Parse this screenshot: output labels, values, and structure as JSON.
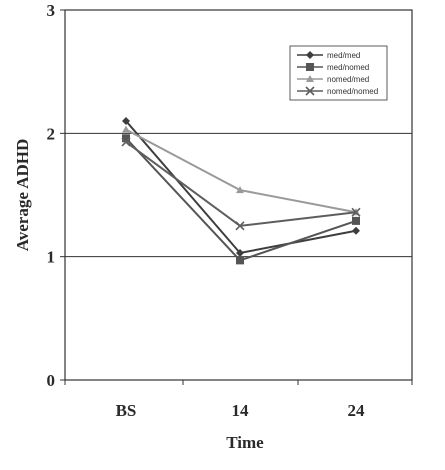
{
  "chart_data": {
    "type": "line",
    "title": "",
    "xlabel": "Time",
    "ylabel": "Average ADHD",
    "categories": [
      "BS",
      "14",
      "24"
    ],
    "ylim": [
      0,
      3
    ],
    "yticks": [
      "0",
      "1",
      "2",
      "3"
    ],
    "grid": "horizontal major gridlines",
    "legend_position": "top-right",
    "series": [
      {
        "name": "med/med",
        "values": [
          2.1,
          1.03,
          1.21
        ],
        "color": "#3d3d3d",
        "marker": "diamond"
      },
      {
        "name": "med/nomed",
        "values": [
          1.96,
          0.97,
          1.29
        ],
        "color": "#555555",
        "marker": "square"
      },
      {
        "name": "nomed/med",
        "values": [
          2.03,
          1.54,
          1.36
        ],
        "color": "#9a9a9a",
        "marker": "triangle"
      },
      {
        "name": "nomed/nomed",
        "values": [
          1.93,
          1.25,
          1.36
        ],
        "color": "#5e5e5e",
        "marker": "x"
      }
    ]
  }
}
